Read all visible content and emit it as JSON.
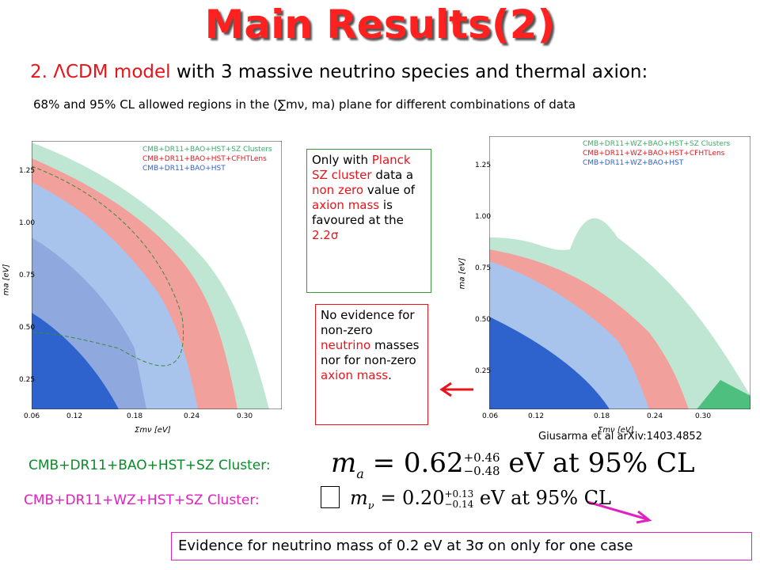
{
  "title": "Main Results(2)",
  "heading": {
    "number": "2.",
    "model": "ΛCDM model",
    "rest": "with 3 massive neutrino species and thermal axion:"
  },
  "description": "68% and 95% CL allowed regions in the (∑mν, ma) plane for different combinations of data",
  "plots": [
    {
      "legend": [
        "CMB+DR11+BAO+HST+SZ Clusters",
        "CMB+DR11+BAO+HST+CFHTLens",
        "CMB+DR11+BAO+HST"
      ],
      "xlabel": "Σmν [eV]",
      "ylabel": "ma [eV]",
      "xticks": [
        "0.06",
        "0.12",
        "0.18",
        "0.24",
        "0.30"
      ],
      "yticks": [
        "1.25",
        "1.00",
        "0.75",
        "0.50",
        "0.25"
      ]
    },
    {
      "legend": [
        "CMB+DR11+WZ+BAO+HST+SZ Clusters",
        "CMB+DR11+WZ+BAO+HST+CFHTLens",
        "CMB+DR11+WZ+BAO+HST"
      ],
      "xlabel": "Σmν [eV]",
      "ylabel": "ma [eV]",
      "xticks": [
        "0.06",
        "0.12",
        "0.18",
        "0.24",
        "0.30"
      ],
      "yticks": [
        "1.25",
        "1.00",
        "0.75",
        "0.50",
        "0.25"
      ]
    }
  ],
  "notes": [
    {
      "segments": [
        "Only with",
        "Planck SZ cluster",
        "data a",
        "non zero",
        "value of",
        "axion mass",
        "is favoured at the",
        "2.2σ"
      ]
    },
    {
      "segments": [
        "No evidence for non-zero",
        "neutrino",
        "masses nor for non-zero",
        "axion mass",
        "."
      ]
    }
  ],
  "citation": "Giusarma et al arXiv:1403.4852",
  "results": [
    {
      "label": "CMB+DR11+BAO+HST+SZ Cluster:",
      "symbol": "m",
      "sub": "a",
      "eq": "= 0.62",
      "up": "+0.46",
      "down": "−0.48",
      "tail": "eV at 95% CL"
    },
    {
      "label": "CMB+DR11+WZ+HST+SZ Cluster:",
      "symbol": "m",
      "sub": "ν",
      "eq": "= 0.20",
      "up": "+0.13",
      "down": "−0.14",
      "tail": "eV at 95% CL"
    }
  ],
  "footer": "Evidence for neutrino mass of 0.2 eV at 3σ  on only for one case"
}
